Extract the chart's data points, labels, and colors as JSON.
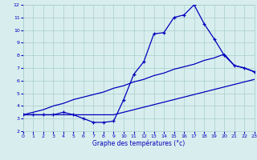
{
  "hours": [
    0,
    1,
    2,
    3,
    4,
    5,
    6,
    7,
    8,
    9,
    10,
    11,
    12,
    13,
    14,
    15,
    16,
    17,
    18,
    19,
    20,
    21,
    22,
    23
  ],
  "temp_curve": [
    3.3,
    3.3,
    3.3,
    3.3,
    3.5,
    3.3,
    3.0,
    2.7,
    2.7,
    2.8,
    4.5,
    6.5,
    7.5,
    9.7,
    9.8,
    11.0,
    11.2,
    12.0,
    10.5,
    9.3,
    8.0,
    7.2,
    7.0,
    6.7
  ],
  "line_min": [
    3.3,
    3.3,
    3.3,
    3.3,
    3.3,
    3.3,
    3.3,
    3.3,
    3.3,
    3.3,
    3.5,
    3.7,
    3.9,
    4.1,
    4.3,
    4.5,
    4.7,
    4.9,
    5.1,
    5.3,
    5.5,
    5.7,
    5.9,
    6.1
  ],
  "line_max": [
    3.3,
    3.5,
    3.7,
    4.0,
    4.2,
    4.5,
    4.7,
    4.9,
    5.1,
    5.4,
    5.6,
    5.9,
    6.1,
    6.4,
    6.6,
    6.9,
    7.1,
    7.3,
    7.6,
    7.8,
    8.1,
    7.2,
    7.0,
    6.7
  ],
  "line_color": "#0000bb",
  "bg_color": "#d8eeee",
  "grid_color": "#aacccc",
  "xlabel": "Graphe des températures (°c)",
  "xlim": [
    0,
    23
  ],
  "ylim": [
    2,
    12
  ],
  "xticks": [
    0,
    1,
    2,
    3,
    4,
    5,
    6,
    7,
    8,
    9,
    10,
    11,
    12,
    13,
    14,
    15,
    16,
    17,
    18,
    19,
    20,
    21,
    22,
    23
  ],
  "yticks": [
    2,
    3,
    4,
    5,
    6,
    7,
    8,
    9,
    10,
    11,
    12
  ]
}
